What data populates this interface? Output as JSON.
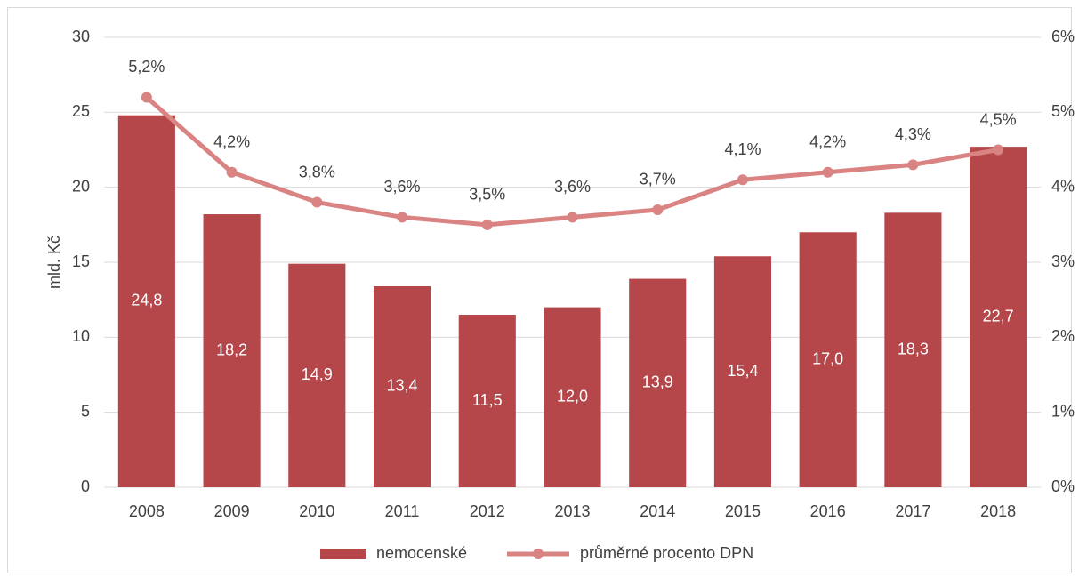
{
  "chart_data": {
    "type": "bar-line",
    "categories": [
      "2008",
      "2009",
      "2010",
      "2011",
      "2012",
      "2013",
      "2014",
      "2015",
      "2016",
      "2017",
      "2018"
    ],
    "y_label": "mld. Kč",
    "series": [
      {
        "name": "nemocenské",
        "type": "bar",
        "color": "#b5474a",
        "values": [
          24.8,
          18.2,
          14.9,
          13.4,
          11.5,
          12.0,
          13.9,
          15.4,
          17.0,
          18.3,
          22.7
        ],
        "value_labels": [
          "24,8",
          "18,2",
          "14,9",
          "13,4",
          "11,5",
          "12,0",
          "13,9",
          "15,4",
          "17,0",
          "18,3",
          "22,7"
        ]
      },
      {
        "name": "průměrné procento DPN",
        "type": "line",
        "axis": "y2",
        "color": "#d98383",
        "values": [
          5.2,
          4.2,
          3.8,
          3.6,
          3.5,
          3.6,
          3.7,
          4.1,
          4.2,
          4.3,
          4.5
        ],
        "value_labels": [
          "5,2%",
          "4,2%",
          "3,8%",
          "3,6%",
          "3,5%",
          "3,6%",
          "3,7%",
          "4,1%",
          "4,2%",
          "4,3%",
          "4,5%"
        ]
      }
    ],
    "ylim": [
      0,
      30
    ],
    "yticks": [
      0,
      5,
      10,
      15,
      20,
      25,
      30
    ],
    "y2lim": [
      0,
      6
    ],
    "y2ticks": [
      {
        "value": 0,
        "label": "0%"
      },
      {
        "value": 1,
        "label": "1%"
      },
      {
        "value": 2,
        "label": "2%"
      },
      {
        "value": 3,
        "label": "3%"
      },
      {
        "value": 4,
        "label": "4%"
      },
      {
        "value": 5,
        "label": "5%"
      },
      {
        "value": 6,
        "label": "6%"
      }
    ],
    "grid": true,
    "legend": "bottom"
  }
}
